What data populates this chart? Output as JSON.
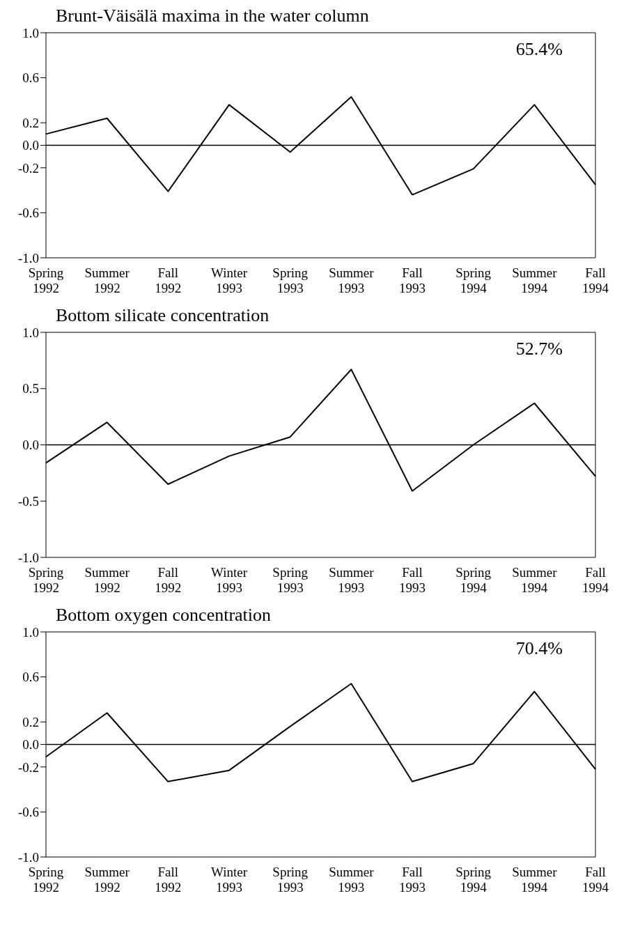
{
  "chart_data": [
    {
      "type": "line",
      "title": "Brunt-Väisälä maxima in the water column",
      "categories": [
        "Spring 1992",
        "Summer 1992",
        "Fall 1992",
        "Winter 1993",
        "Spring 1993",
        "Summer 1993",
        "Fall 1993",
        "Spring 1994",
        "Summer 1994",
        "Fall 1994"
      ],
      "values": [
        0.1,
        0.24,
        -0.41,
        0.36,
        -0.06,
        0.43,
        -0.44,
        -0.21,
        0.36,
        -0.35
      ],
      "color": "#000000",
      "marker": "none",
      "ylim": [
        -1,
        1
      ],
      "yticks": [
        {
          "value": -1,
          "label": "-1.0"
        },
        {
          "value": -0.6,
          "label": "-0.6"
        },
        {
          "value": -0.2,
          "label": "-0.2"
        },
        {
          "value": 0,
          "label": "0.0"
        },
        {
          "value": 0.2,
          "label": "0.2"
        },
        {
          "value": 0.6,
          "label": "0.6"
        },
        {
          "value": 1,
          "label": "1.0"
        }
      ],
      "ref_lines": [
        {
          "axis": "y",
          "value": 0,
          "color": "#000000"
        }
      ],
      "annotations": [
        "65.4%"
      ]
    },
    {
      "type": "line",
      "title": "Bottom silicate concentration",
      "categories": [
        "Spring 1992",
        "Summer 1992",
        "Fall 1992",
        "Winter 1993",
        "Spring 1993",
        "Summer 1993",
        "Fall 1993",
        "Spring 1994",
        "Summer 1994",
        "Fall 1994"
      ],
      "values": [
        -0.16,
        0.2,
        -0.35,
        -0.1,
        0.07,
        0.67,
        -0.41,
        0.0,
        0.37,
        -0.28
      ],
      "color": "#000000",
      "marker": "none",
      "ylim": [
        -1,
        1
      ],
      "yticks": [
        {
          "value": -1,
          "label": "-1.0"
        },
        {
          "value": -0.5,
          "label": "-0.5"
        },
        {
          "value": 0,
          "label": "0.0"
        },
        {
          "value": 0.5,
          "label": "0.5"
        },
        {
          "value": 1,
          "label": "1.0"
        }
      ],
      "ref_lines": [
        {
          "axis": "y",
          "value": 0,
          "color": "#000000"
        }
      ],
      "annotations": [
        "52.7%"
      ]
    },
    {
      "type": "line",
      "title": "Bottom oxygen concentration",
      "categories": [
        "Spring 1992",
        "Summer 1992",
        "Fall 1992",
        "Winter 1993",
        "Spring 1993",
        "Summer 1993",
        "Fall 1993",
        "Spring 1994",
        "Summer 1994",
        "Fall 1994"
      ],
      "values": [
        -0.11,
        0.28,
        -0.33,
        -0.23,
        0.16,
        0.54,
        -0.33,
        -0.17,
        0.47,
        -0.22
      ],
      "color": "#000000",
      "marker": "none",
      "ylim": [
        -1,
        1
      ],
      "yticks": [
        {
          "value": -1,
          "label": "-1.0"
        },
        {
          "value": -0.6,
          "label": "-0.6"
        },
        {
          "value": -0.2,
          "label": "-0.2"
        },
        {
          "value": 0,
          "label": "0.0"
        },
        {
          "value": 0.2,
          "label": "0.2"
        },
        {
          "value": 0.6,
          "label": "0.6"
        },
        {
          "value": 1,
          "label": "1.0"
        }
      ],
      "ref_lines": [
        {
          "axis": "y",
          "value": 0,
          "color": "#000000"
        }
      ],
      "annotations": [
        "70.4%"
      ]
    }
  ]
}
